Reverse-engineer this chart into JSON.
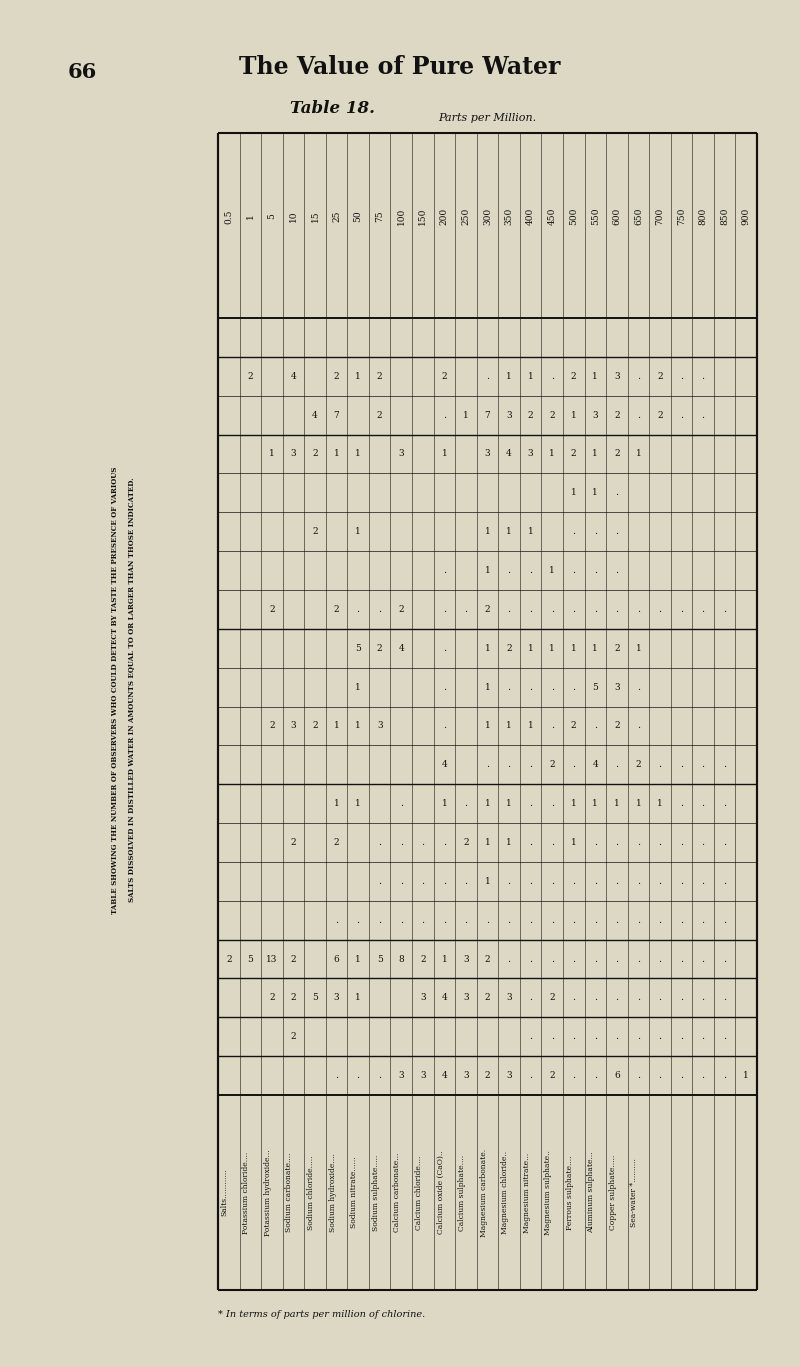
{
  "page_number": "66",
  "page_title": "The Value of Pure Water",
  "table_title": "Table 18.",
  "side_label_line1": "TABLE SHOWING THE NUMBER OF OBSERVERS WHO COULD DETECT BY TASTE THE PRESENCE OF VARIOUS",
  "side_label_line2": "SALTS DISSOLVED IN DISTILLED WATER IN AMOUNTS EQUAL TO OR LARGER THAN THOSE INDICATED.",
  "col_header_label": "Parts per Million.",
  "footnote": "* In terms of parts per million of chlorine.",
  "bg_color": "#ddd8c4",
  "text_color": "#111111",
  "line_color": "#111111",
  "rows": [
    "Salts............",
    "Potassium chloride....",
    "Potassium hydroxide...",
    "Sodium carbonate....",
    "Sodium chloride.....",
    "Sodium hydroxide....",
    "Sodium nitrate......",
    "Sodium sulphate.....",
    "Calcium carbonate...",
    "Calcium chloride....",
    "Calcium oxide (CaO)..",
    "Calcium sulphate....",
    "Magnesium carbonate.",
    "Magnesium chloride..",
    "Magnesium nitrate...",
    "Magnesium sulphate..",
    "Ferrous sulphate....",
    "Aluminum sulphate...",
    "Copper sulphate.....",
    "Sea-water *.........."
  ],
  "cols": [
    "0.5",
    "1",
    "5",
    "10",
    "15",
    "25",
    "50",
    "75",
    "100",
    "150",
    "200",
    "250",
    "300",
    "350",
    "400",
    "450",
    "500",
    "550",
    "600",
    "650",
    "700",
    "750",
    "800",
    "850",
    "900"
  ],
  "table": [
    [
      "",
      "",
      "",
      "",
      "",
      "",
      "",
      "",
      "",
      "",
      "",
      "",
      "",
      "",
      "",
      "",
      "",
      "",
      "",
      "",
      "",
      "",
      "",
      "",
      ""
    ],
    [
      "",
      "2",
      "",
      "4",
      "",
      "2",
      "1",
      "2",
      "",
      "",
      "2",
      "",
      ".",
      "1",
      "1",
      ".",
      "2",
      "1",
      "3",
      ".",
      "2",
      ".",
      ".",
      "",
      ""
    ],
    [
      "",
      "",
      "",
      "",
      "4",
      "7",
      "",
      "2",
      "",
      "",
      ".",
      "1",
      "7",
      "3",
      "2",
      "2",
      "1",
      "3",
      "2",
      ".",
      "2",
      ".",
      ".",
      "",
      ""
    ],
    [
      "",
      "",
      "1",
      "3",
      "2",
      "1",
      "1",
      "",
      "3",
      "",
      "1",
      "",
      "3",
      "4",
      "3",
      "1",
      "2",
      "1",
      "2",
      "1",
      "",
      "",
      "",
      "",
      ""
    ],
    [
      "",
      "",
      "",
      "",
      "",
      "",
      "",
      "",
      "",
      "",
      "",
      "",
      "",
      "",
      "",
      "",
      "1",
      "1",
      ".",
      "",
      "",
      "",
      "",
      "",
      ""
    ],
    [
      "",
      "",
      "",
      "",
      "2",
      "",
      "1",
      "",
      "",
      "",
      "",
      "",
      "1",
      "1",
      "1",
      "",
      ".",
      ".",
      ".",
      "",
      "",
      "",
      "",
      "",
      ""
    ],
    [
      "",
      "",
      "",
      "",
      "",
      "",
      "",
      "",
      "",
      "",
      ".",
      "",
      "1",
      ".",
      ".",
      "1",
      ".",
      ".",
      ".",
      "",
      "",
      "",
      "",
      "",
      ""
    ],
    [
      "",
      "",
      "2",
      "",
      "",
      "2",
      ".",
      ".",
      "2",
      "",
      ".",
      ".",
      "2",
      ".",
      ".",
      ".",
      ".",
      ".",
      ".",
      ".",
      ".",
      ".",
      ".",
      ".",
      ""
    ],
    [
      "",
      "",
      "",
      "",
      "",
      "",
      "5",
      "2",
      "4",
      "",
      ".",
      "",
      "1",
      "2",
      "1",
      "1",
      "1",
      "1",
      "2",
      "1",
      "",
      "",
      "",
      "",
      ""
    ],
    [
      "",
      "",
      "",
      "",
      "",
      "",
      "1",
      "",
      "",
      "",
      ".",
      "",
      "1",
      ".",
      ".",
      ".",
      ".",
      "5",
      "3",
      ".",
      "",
      "",
      "",
      "",
      ""
    ],
    [
      "",
      "",
      "2",
      "3",
      "2",
      "1",
      "1",
      "3",
      "",
      "",
      ".",
      "",
      "1",
      "1",
      "1",
      ".",
      "2",
      ".",
      "2",
      ".",
      "",
      "",
      "",
      "",
      ""
    ],
    [
      "",
      "",
      "",
      "",
      "",
      "",
      "",
      "",
      "",
      "",
      "4",
      "",
      ".",
      ".",
      ".",
      "2",
      ".",
      "4",
      ".",
      "2",
      ".",
      ".",
      ".",
      ".",
      ""
    ],
    [
      "",
      "",
      "",
      "",
      "",
      "1",
      "1",
      "",
      ".",
      "",
      "1",
      ".",
      "1",
      "1",
      ".",
      ".",
      "1",
      "1",
      "1",
      "1",
      "1",
      ".",
      ".",
      ".",
      ""
    ],
    [
      "",
      "",
      "",
      "2",
      "",
      "2",
      "",
      ".",
      ".",
      ".",
      ".",
      "2",
      "1",
      "1",
      ".",
      ".",
      "1",
      ".",
      ".",
      ".",
      ".",
      ".",
      ".",
      ".",
      ""
    ],
    [
      "",
      "",
      "",
      "",
      "",
      "",
      "",
      ".",
      ".",
      ".",
      ".",
      ".",
      "1",
      ".",
      ".",
      ".",
      ".",
      ".",
      ".",
      ".",
      ".",
      ".",
      ".",
      ".",
      ""
    ],
    [
      "",
      "",
      "",
      "",
      "",
      ".",
      ".",
      ".",
      ".",
      ".",
      ".",
      ".",
      ".",
      ".",
      ".",
      ".",
      ".",
      ".",
      ".",
      ".",
      ".",
      ".",
      ".",
      ".",
      ""
    ],
    [
      "2",
      "5",
      "13",
      "2",
      "",
      "6",
      "1",
      "5",
      "8",
      "2",
      "1",
      "3",
      "2",
      ".",
      ".",
      ".",
      ".",
      ".",
      ".",
      ".",
      ".",
      ".",
      ".",
      ".",
      ""
    ],
    [
      "",
      "",
      "2",
      "2",
      "5",
      "3",
      "1",
      "",
      "",
      "3",
      "4",
      "3",
      "2",
      "3",
      ".",
      "2",
      ".",
      ".",
      ".",
      ".",
      ".",
      ".",
      ".",
      ".",
      ""
    ],
    [
      "",
      "",
      "",
      "2",
      "",
      "",
      "",
      "",
      "",
      "",
      "",
      "",
      "",
      "",
      ".",
      ".",
      ".",
      ".",
      ".",
      ".",
      ".",
      ".",
      ".",
      ".",
      ""
    ],
    [
      "",
      "",
      "",
      "",
      "",
      ".",
      ".",
      ".",
      "3",
      "3",
      "4",
      "3",
      "2",
      "3",
      ".",
      "2",
      ".",
      ".",
      "6",
      ".",
      ".",
      ".",
      ".",
      ".",
      "1"
    ]
  ],
  "thick_after_rows": [
    0,
    2,
    7,
    11,
    15,
    16,
    17,
    18,
    19
  ]
}
